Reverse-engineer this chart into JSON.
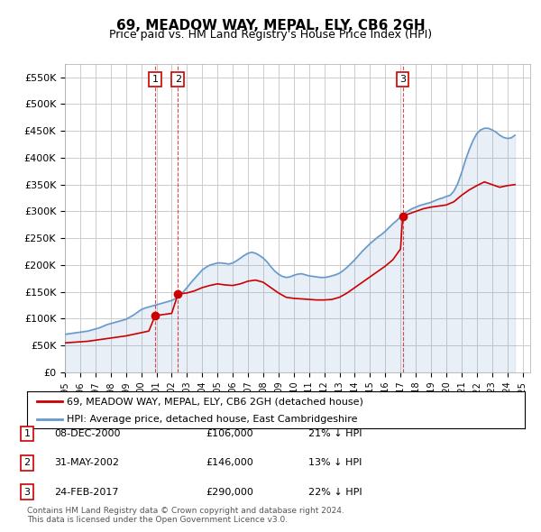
{
  "title": "69, MEADOW WAY, MEPAL, ELY, CB6 2GH",
  "subtitle": "Price paid vs. HM Land Registry's House Price Index (HPI)",
  "ylabel": "",
  "ylim": [
    0,
    575000
  ],
  "yticks": [
    0,
    50000,
    100000,
    150000,
    200000,
    250000,
    300000,
    350000,
    400000,
    450000,
    500000,
    550000
  ],
  "ytick_labels": [
    "£0",
    "£50K",
    "£100K",
    "£150K",
    "£200K",
    "£250K",
    "£300K",
    "£350K",
    "£400K",
    "£450K",
    "£500K",
    "£550K"
  ],
  "xlim_start": 1995.0,
  "xlim_end": 2025.5,
  "transactions": [
    {
      "num": 1,
      "date": "08-DEC-2000",
      "price": 106000,
      "pct": "21%",
      "x": 2000.92
    },
    {
      "num": 2,
      "date": "31-MAY-2002",
      "price": 146000,
      "pct": "13%",
      "x": 2002.41
    },
    {
      "num": 3,
      "date": "24-FEB-2017",
      "price": 290000,
      "pct": "22%",
      "x": 2017.14
    }
  ],
  "legend_label_red": "69, MEADOW WAY, MEPAL, ELY, CB6 2GH (detached house)",
  "legend_label_blue": "HPI: Average price, detached house, East Cambridgeshire",
  "footer": "Contains HM Land Registry data © Crown copyright and database right 2024.\nThis data is licensed under the Open Government Licence v3.0.",
  "red_color": "#cc0000",
  "blue_color": "#6699cc",
  "background_color": "#f0f4f8",
  "hpi_x": [
    1995.0,
    1995.25,
    1995.5,
    1995.75,
    1996.0,
    1996.25,
    1996.5,
    1996.75,
    1997.0,
    1997.25,
    1997.5,
    1997.75,
    1998.0,
    1998.25,
    1998.5,
    1998.75,
    1999.0,
    1999.25,
    1999.5,
    1999.75,
    2000.0,
    2000.25,
    2000.5,
    2000.75,
    2001.0,
    2001.25,
    2001.5,
    2001.75,
    2002.0,
    2002.25,
    2002.5,
    2002.75,
    2003.0,
    2003.25,
    2003.5,
    2003.75,
    2004.0,
    2004.25,
    2004.5,
    2004.75,
    2005.0,
    2005.25,
    2005.5,
    2005.75,
    2006.0,
    2006.25,
    2006.5,
    2006.75,
    2007.0,
    2007.25,
    2007.5,
    2007.75,
    2008.0,
    2008.25,
    2008.5,
    2008.75,
    2009.0,
    2009.25,
    2009.5,
    2009.75,
    2010.0,
    2010.25,
    2010.5,
    2010.75,
    2011.0,
    2011.25,
    2011.5,
    2011.75,
    2012.0,
    2012.25,
    2012.5,
    2012.75,
    2013.0,
    2013.25,
    2013.5,
    2013.75,
    2014.0,
    2014.25,
    2014.5,
    2014.75,
    2015.0,
    2015.25,
    2015.5,
    2015.75,
    2016.0,
    2016.25,
    2016.5,
    2016.75,
    2017.0,
    2017.25,
    2017.5,
    2017.75,
    2018.0,
    2018.25,
    2018.5,
    2018.75,
    2019.0,
    2019.25,
    2019.5,
    2019.75,
    2020.0,
    2020.25,
    2020.5,
    2020.75,
    2021.0,
    2021.25,
    2021.5,
    2021.75,
    2022.0,
    2022.25,
    2022.5,
    2022.75,
    2023.0,
    2023.25,
    2023.5,
    2023.75,
    2024.0,
    2024.25,
    2024.5
  ],
  "hpi_y": [
    71000,
    72000,
    73000,
    74000,
    75000,
    76000,
    77000,
    79000,
    81000,
    83000,
    86000,
    89000,
    91000,
    93000,
    95000,
    97000,
    99000,
    103000,
    107000,
    112000,
    117000,
    120000,
    122000,
    124000,
    126000,
    128000,
    130000,
    132000,
    134000,
    138000,
    144000,
    150000,
    158000,
    167000,
    175000,
    183000,
    191000,
    196000,
    200000,
    202000,
    204000,
    204000,
    203000,
    202000,
    204000,
    208000,
    213000,
    218000,
    222000,
    224000,
    222000,
    218000,
    213000,
    206000,
    197000,
    189000,
    183000,
    179000,
    177000,
    178000,
    181000,
    183000,
    184000,
    182000,
    180000,
    179000,
    178000,
    177000,
    177000,
    178000,
    180000,
    182000,
    185000,
    190000,
    196000,
    203000,
    210000,
    218000,
    226000,
    233000,
    240000,
    246000,
    252000,
    257000,
    263000,
    270000,
    277000,
    283000,
    290000,
    296000,
    301000,
    305000,
    308000,
    311000,
    313000,
    315000,
    317000,
    320000,
    323000,
    325000,
    328000,
    330000,
    338000,
    352000,
    372000,
    395000,
    415000,
    432000,
    445000,
    452000,
    455000,
    455000,
    452000,
    448000,
    442000,
    438000,
    436000,
    437000,
    442000
  ],
  "red_x": [
    1995.0,
    1995.5,
    1996.0,
    1996.5,
    1997.0,
    1997.5,
    1998.0,
    1998.5,
    1999.0,
    1999.5,
    2000.0,
    2000.5,
    2000.92,
    2001.5,
    2002.0,
    2002.41,
    2003.0,
    2003.5,
    2004.0,
    2004.5,
    2005.0,
    2005.5,
    2006.0,
    2006.5,
    2007.0,
    2007.5,
    2008.0,
    2008.5,
    2009.0,
    2009.5,
    2010.0,
    2010.5,
    2011.0,
    2011.5,
    2012.0,
    2012.5,
    2013.0,
    2013.5,
    2014.0,
    2014.5,
    2015.0,
    2015.5,
    2016.0,
    2016.5,
    2017.0,
    2017.14,
    2017.5,
    2018.0,
    2018.5,
    2019.0,
    2019.5,
    2020.0,
    2020.5,
    2021.0,
    2021.5,
    2022.0,
    2022.5,
    2023.0,
    2023.5,
    2024.0,
    2024.5
  ],
  "red_y": [
    55000,
    56000,
    57000,
    58000,
    60000,
    62000,
    64000,
    66000,
    68000,
    71000,
    74000,
    77000,
    106000,
    108000,
    110000,
    146000,
    148000,
    152000,
    158000,
    162000,
    165000,
    163000,
    162000,
    165000,
    170000,
    172000,
    168000,
    158000,
    148000,
    140000,
    138000,
    137000,
    136000,
    135000,
    135000,
    136000,
    140000,
    148000,
    158000,
    168000,
    178000,
    188000,
    198000,
    210000,
    230000,
    290000,
    295000,
    300000,
    305000,
    308000,
    310000,
    312000,
    318000,
    330000,
    340000,
    348000,
    355000,
    350000,
    345000,
    348000,
    350000
  ]
}
